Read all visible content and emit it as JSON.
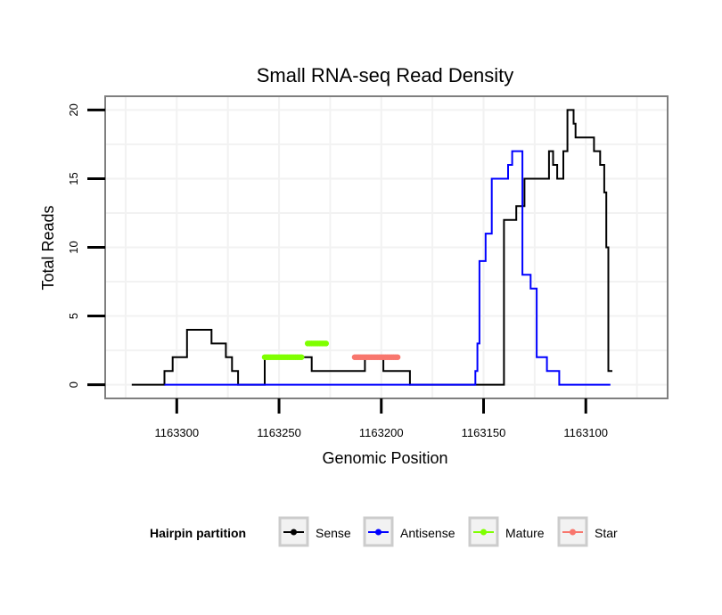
{
  "chart_data": {
    "type": "line",
    "title": "Small RNA-seq Read Density",
    "xlabel": "Genomic Position",
    "ylabel": "Total Reads",
    "xlim": [
      1163335,
      1163060
    ],
    "ylim": [
      -1,
      21
    ],
    "x_ticks": [
      1163300,
      1163250,
      1163200,
      1163150,
      1163100
    ],
    "x_tick_labels": [
      "1163300",
      "1163250",
      "1163200",
      "1163150",
      "1163100"
    ],
    "y_ticks": [
      0,
      5,
      10,
      15,
      20
    ],
    "y_tick_labels": [
      "0",
      "5",
      "10",
      "15",
      "20"
    ],
    "legend": {
      "title": "Hairpin partition",
      "position": "bottom",
      "entries": [
        "Sense",
        "Antisense",
        "Mature",
        "Star"
      ]
    },
    "series": [
      {
        "name": "Sense",
        "color": "#000000",
        "step": true,
        "points": [
          [
            1163322,
            0
          ],
          [
            1163306,
            1
          ],
          [
            1163302,
            2
          ],
          [
            1163295,
            4
          ],
          [
            1163283,
            3
          ],
          [
            1163276,
            2
          ],
          [
            1163273,
            1
          ],
          [
            1163270,
            0
          ],
          [
            1163257,
            2
          ],
          [
            1163234,
            1
          ],
          [
            1163208,
            2
          ],
          [
            1163199,
            1
          ],
          [
            1163186,
            0
          ],
          [
            1163140,
            12
          ],
          [
            1163134,
            13
          ],
          [
            1163130,
            15
          ],
          [
            1163118,
            17
          ],
          [
            1163116,
            16
          ],
          [
            1163114,
            15
          ],
          [
            1163111,
            17
          ],
          [
            1163109,
            20
          ],
          [
            1163106,
            19
          ],
          [
            1163105,
            18
          ],
          [
            1163096,
            17
          ],
          [
            1163093,
            16
          ],
          [
            1163091,
            14
          ],
          [
            1163090,
            10
          ],
          [
            1163089,
            1
          ],
          [
            1163087,
            1
          ]
        ]
      },
      {
        "name": "Antisense",
        "color": "#0000ff",
        "step": true,
        "points": [
          [
            1163306,
            0
          ],
          [
            1163154,
            1
          ],
          [
            1163153,
            3
          ],
          [
            1163152,
            9
          ],
          [
            1163149,
            11
          ],
          [
            1163146,
            15
          ],
          [
            1163138,
            16
          ],
          [
            1163136,
            17
          ],
          [
            1163131,
            8
          ],
          [
            1163127,
            7
          ],
          [
            1163124,
            2
          ],
          [
            1163119,
            1
          ],
          [
            1163113,
            0
          ],
          [
            1163088,
            0
          ]
        ]
      },
      {
        "name": "Mature",
        "color": "#7fff00",
        "segments": [
          {
            "x": [
              1163257,
              1163239
            ],
            "y": 2
          },
          {
            "x": [
              1163236,
              1163227
            ],
            "y": 3
          }
        ]
      },
      {
        "name": "Star",
        "color": "#f8766d",
        "segments": [
          {
            "x": [
              1163213,
              1163192
            ],
            "y": 2
          }
        ]
      }
    ]
  }
}
